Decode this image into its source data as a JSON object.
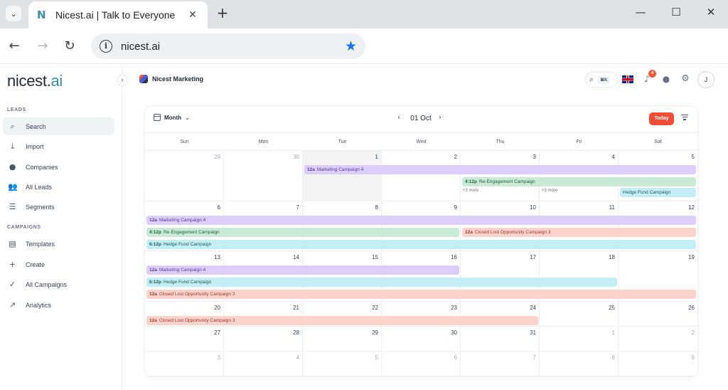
{
  "browser": {
    "tab_title": "Nicest.ai | Talk to Everyone",
    "tab_favicon": "N",
    "close_glyph": "✕",
    "new_tab_glyph": "+",
    "menu_glyph": "⌄",
    "url": "nicest.ai",
    "icons": {
      "back": "←",
      "forward": "→",
      "reload": "↻",
      "info": "i",
      "star": "★",
      "minimize": "—",
      "maximize": "☐",
      "close": "✕"
    }
  },
  "sidebar": {
    "logo_main": "nicest.",
    "logo_accent": "ai",
    "collapse_glyph": "‹",
    "sections": {
      "leads": "LEADS",
      "campaigns": "CAMPAIGNS"
    },
    "items": [
      {
        "label": "Search",
        "icon": "⌕"
      },
      {
        "label": "Import",
        "icon": "⤓"
      },
      {
        "label": "Companies",
        "icon": "●"
      },
      {
        "label": "All Leads",
        "icon": "👥"
      },
      {
        "label": "Segments",
        "icon": "☰"
      },
      {
        "label": "Templates",
        "icon": "▤"
      },
      {
        "label": "Create",
        "icon": "+"
      },
      {
        "label": "All Campaigns",
        "icon": "✓"
      },
      {
        "label": "Analytics",
        "icon": "↗"
      }
    ]
  },
  "header": {
    "workspace": "Nicest Marketing",
    "search_glyph": "⌕",
    "shortcut": "⌘K",
    "notifications": "4",
    "bell_glyph": "♪",
    "users_glyph": "●",
    "gear_glyph": "⚙",
    "avatar_initial": "J",
    "accent": "#ef4d36"
  },
  "calendar": {
    "view": "Month",
    "view_chevron": "⌄",
    "period": "01 Oct",
    "prev_glyph": "‹",
    "next_glyph": "›",
    "today_label": "Today",
    "days_of_week": [
      "Sun",
      "Mon",
      "Tue",
      "Wed",
      "Thu",
      "Fri",
      "Sat"
    ],
    "weeks": [
      {
        "days": [
          "29",
          "30",
          "1",
          "2",
          "3",
          "4",
          "5"
        ],
        "muted": [
          0,
          1
        ],
        "today": 2,
        "more": [
          {
            "col": 4,
            "label": "+3 more"
          },
          {
            "col": 5,
            "label": "+3 more"
          }
        ]
      },
      {
        "days": [
          "6",
          "7",
          "8",
          "9",
          "10",
          "11",
          "12"
        ],
        "muted": [],
        "today": -1,
        "more": []
      },
      {
        "days": [
          "13",
          "14",
          "15",
          "16",
          "17",
          "18",
          "19"
        ],
        "muted": [],
        "today": -1,
        "more": []
      },
      {
        "days": [
          "20",
          "21",
          "22",
          "23",
          "24",
          "25",
          "26"
        ],
        "muted": [],
        "today": -1,
        "more": []
      },
      {
        "days": [
          "27",
          "28",
          "29",
          "30",
          "31",
          "1",
          "2"
        ],
        "muted": [
          5,
          6
        ],
        "today": -1,
        "more": []
      },
      {
        "days": [
          "3",
          "4",
          "5",
          "6",
          "7",
          "8",
          "9"
        ],
        "muted": [
          0,
          1,
          2,
          3,
          4,
          5,
          6
        ],
        "today": -1,
        "more": []
      }
    ],
    "events": [
      {
        "week": 0,
        "start": 2,
        "end": 6,
        "lane": 0,
        "time": "12a",
        "title": "Marketing Campaign 4",
        "color": "purple"
      },
      {
        "week": 0,
        "start": 4,
        "end": 6,
        "lane": 1,
        "time": "4:12p",
        "title": "Re-Engagement Campaign",
        "color": "green"
      },
      {
        "week": 0,
        "start": 6,
        "end": 6,
        "lane": 2,
        "time": "",
        "title": "Hedge Fund Campaign",
        "color": "cyan"
      },
      {
        "week": 1,
        "start": 0,
        "end": 6,
        "lane": 0,
        "time": "12a",
        "title": "Marketing Campaign 4",
        "color": "purple"
      },
      {
        "week": 1,
        "start": 0,
        "end": 3,
        "lane": 1,
        "time": "4:12p",
        "title": "Re-Engagement Campaign",
        "color": "green"
      },
      {
        "week": 1,
        "start": 4,
        "end": 6,
        "lane": 1,
        "time": "12a",
        "title": "Closed Lost Opportunity Campaign 3",
        "color": "salmon"
      },
      {
        "week": 1,
        "start": 0,
        "end": 6,
        "lane": 2,
        "time": "6:12p",
        "title": "Hedge Fund Campaign",
        "color": "cyan"
      },
      {
        "week": 2,
        "start": 0,
        "end": 3,
        "lane": 0,
        "time": "12a",
        "title": "Marketing Campaign 4",
        "color": "purple"
      },
      {
        "week": 2,
        "start": 0,
        "end": 5,
        "lane": 1,
        "time": "6:12p",
        "title": "Hedge Fund Campaign",
        "color": "cyan"
      },
      {
        "week": 2,
        "start": 0,
        "end": 6,
        "lane": 2,
        "time": "12a",
        "title": "Closed Lost Opportunity Campaign 3",
        "color": "salmon"
      },
      {
        "week": 3,
        "start": 0,
        "end": 4,
        "lane": 0,
        "time": "12a",
        "title": "Closed Lost Opportunity Campaign 3",
        "color": "salmon"
      }
    ]
  }
}
